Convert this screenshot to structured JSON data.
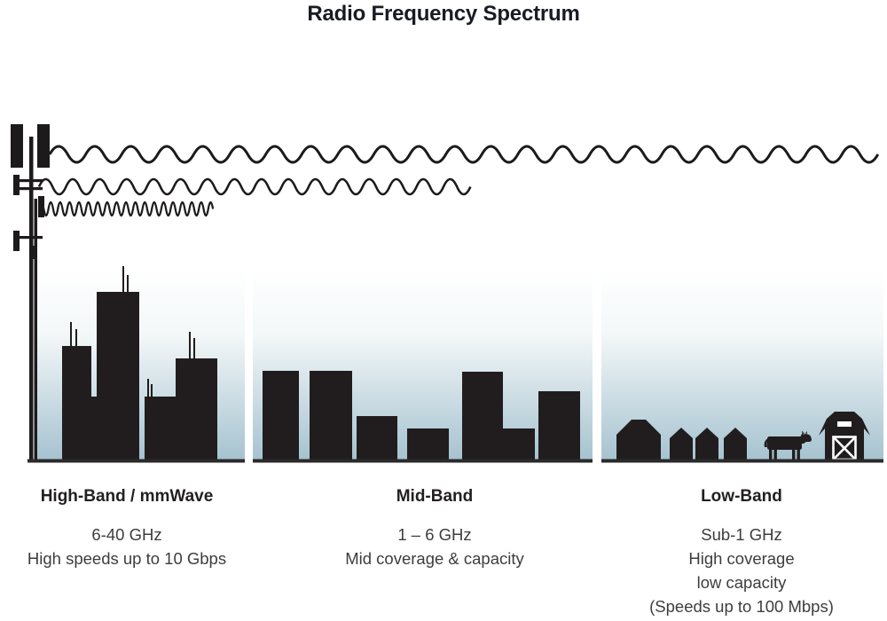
{
  "title": "Radio Frequency Spectrum",
  "bands": [
    {
      "id": "high",
      "name": "High-Band / mmWave",
      "lines": [
        "6-40 GHz",
        "High speeds up to 10 Gbps"
      ],
      "scene": "dense city skyline with antennas",
      "wave": "short wavelength, shortest reach"
    },
    {
      "id": "mid",
      "name": "Mid-Band",
      "lines": [
        "1 – 6 GHz",
        "Mid coverage & capacity"
      ],
      "scene": "mid-rise town buildings",
      "wave": "medium wavelength, medium reach"
    },
    {
      "id": "low",
      "name": "Low-Band",
      "lines": [
        "Sub-1 GHz",
        "High coverage",
        "low capacity",
        "(Speeds up to 100 Mbps)"
      ],
      "scene": "rural houses, cow and barn",
      "wave": "long wavelength, longest reach"
    }
  ],
  "icons": {
    "cell-tower-icon": "multi-panel transmission mast",
    "high-band-wave-icon": "tight sine wave ending over city",
    "mid-band-wave-icon": "medium sine wave ending over town",
    "low-band-wave-icon": "long sine wave spanning full width",
    "cow-icon": "cow silhouette",
    "barn-icon": "barn with X door",
    "house-icon": "pitched-roof house silhouette"
  },
  "colors": {
    "ink": "#1d1a1b",
    "building": "#211d1e",
    "ground": "#2b2a2a",
    "sky_top": "#ffffff",
    "sky_bottom": "#a6c3d0",
    "title_text": "#171b24",
    "body_text": "#3d3d3d"
  }
}
